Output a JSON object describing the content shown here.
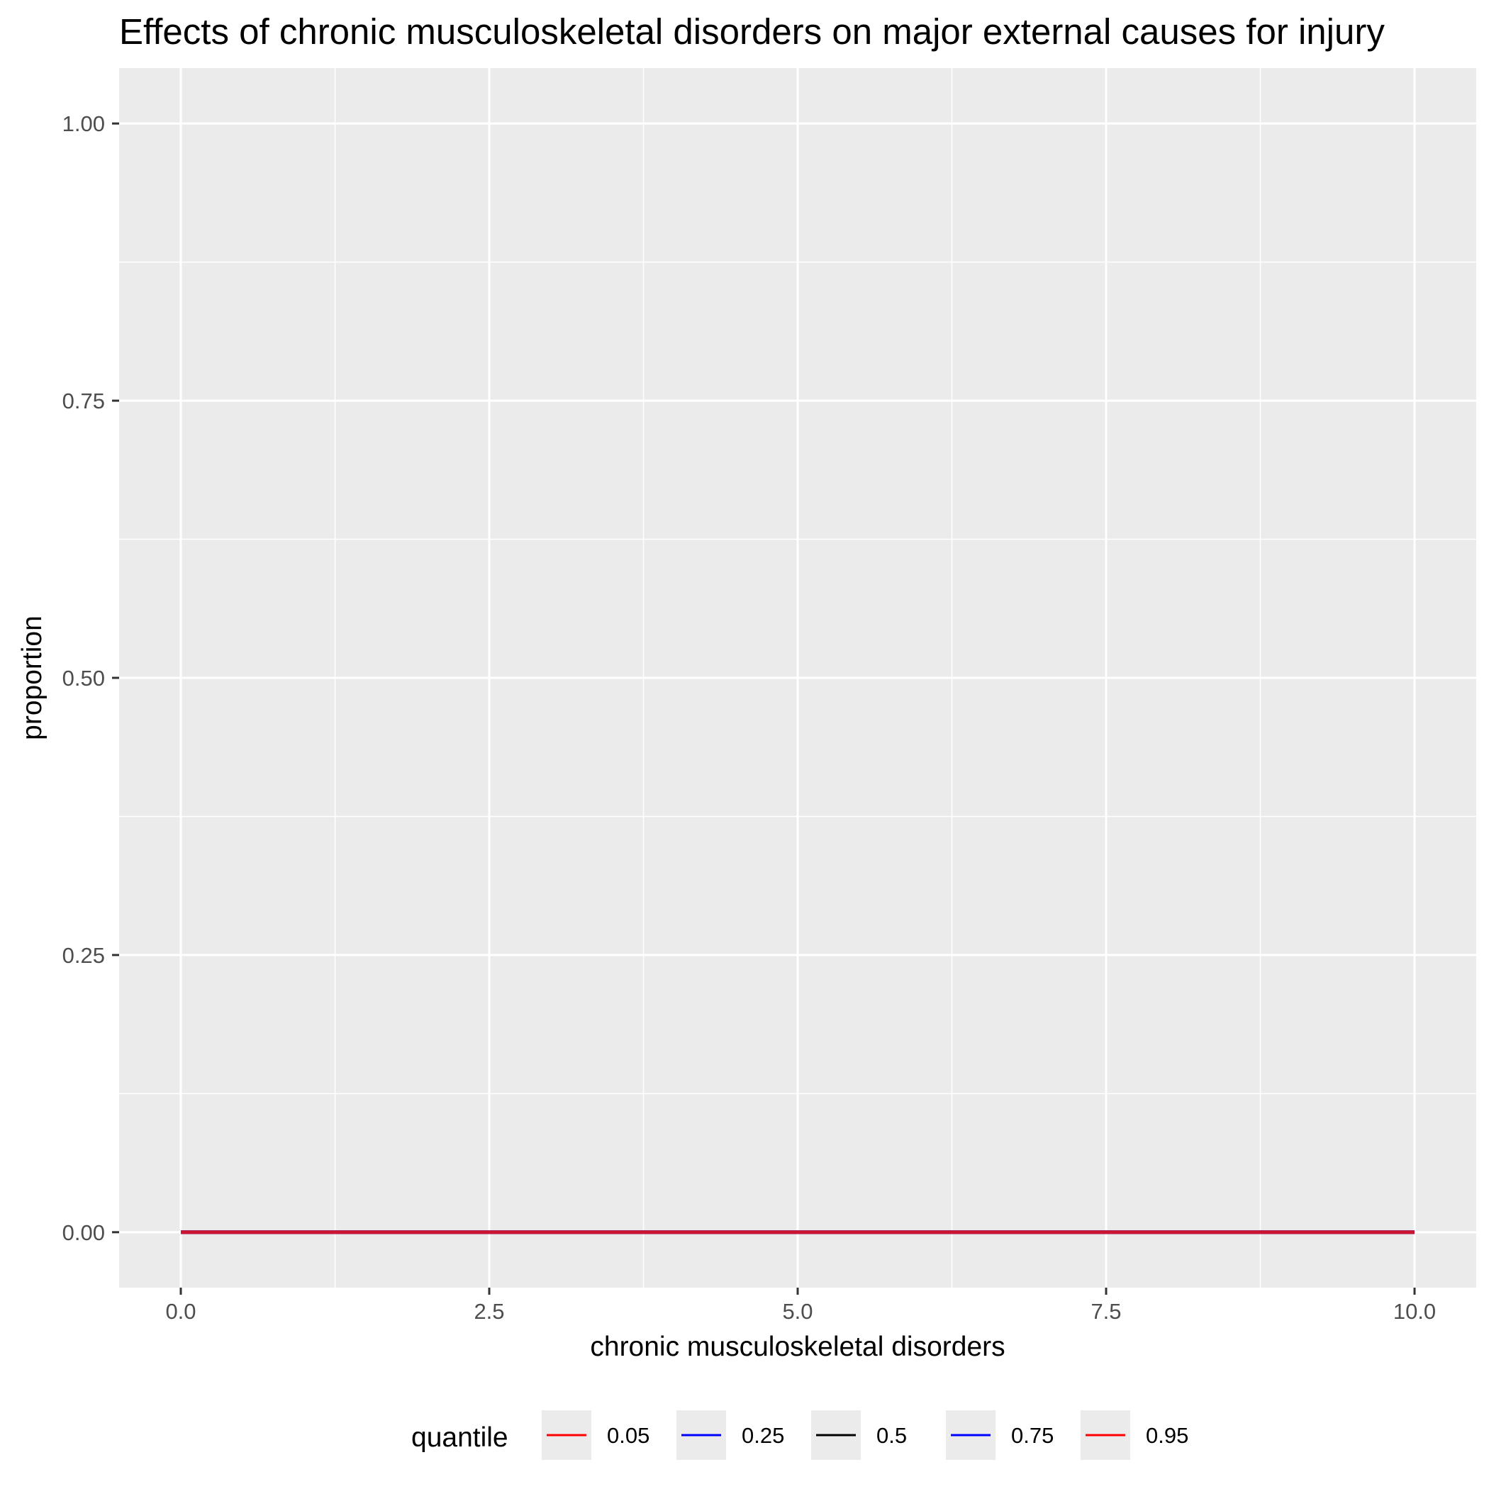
{
  "chart_data": {
    "type": "line",
    "title": "Effects of chronic musculoskeletal disorders on major external causes for injury",
    "xlabel": "chronic musculoskeletal disorders",
    "ylabel": "proportion",
    "xlim": [
      -0.5,
      10.5
    ],
    "ylim": [
      -0.05,
      1.05
    ],
    "x_ticks": [
      0,
      2.5,
      5,
      7.5,
      10
    ],
    "x_tick_labels": [
      "0.0",
      "2.5",
      "5.0",
      "7.5",
      "10.0"
    ],
    "y_ticks": [
      0,
      0.25,
      0.5,
      0.75,
      1
    ],
    "y_tick_labels": [
      "0.00",
      "0.25",
      "0.50",
      "0.75",
      "1.00"
    ],
    "grid": true,
    "legend_title": "quantile",
    "legend_position": "bottom",
    "series": [
      {
        "name": "0.05",
        "color": "#ff0000",
        "x": [
          0,
          10
        ],
        "y": [
          0,
          0
        ]
      },
      {
        "name": "0.25",
        "color": "#0000ff",
        "x": [
          0,
          10
        ],
        "y": [
          0,
          0
        ]
      },
      {
        "name": "0.5",
        "color": "#000000",
        "x": [
          0,
          10
        ],
        "y": [
          0,
          0
        ]
      },
      {
        "name": "0.75",
        "color": "#0000ff",
        "x": [
          0,
          10
        ],
        "y": [
          0,
          0
        ]
      },
      {
        "name": "0.95",
        "color": "#ff0000",
        "x": [
          0,
          10
        ],
        "y": [
          0,
          0
        ]
      }
    ],
    "overlay_color": "#cc1530"
  }
}
